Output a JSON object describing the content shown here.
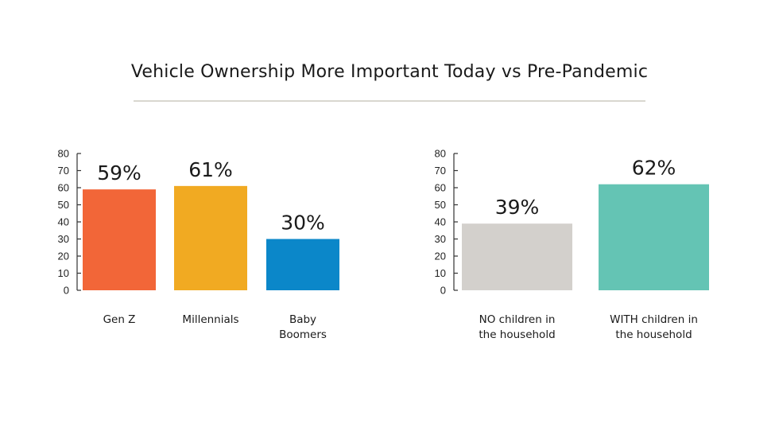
{
  "title": "Vehicle Ownership More Important Today vs Pre-Pandemic",
  "chart_data": [
    {
      "type": "bar",
      "categories": [
        "Gen Z",
        "Millennials",
        "Baby Boomers"
      ],
      "category_lines": [
        [
          "Gen Z"
        ],
        [
          "Millennials"
        ],
        [
          "Baby",
          "Boomers"
        ]
      ],
      "values": [
        59,
        61,
        30
      ],
      "data_labels": [
        "59%",
        "61%",
        "30%"
      ],
      "colors": [
        "#f26638",
        "#f1aa22",
        "#0b87c9"
      ],
      "ylim": [
        0,
        80
      ],
      "yticks": [
        0,
        10,
        20,
        30,
        40,
        50,
        60,
        70,
        80
      ],
      "grid": false,
      "title": "",
      "xlabel": "",
      "ylabel": ""
    },
    {
      "type": "bar",
      "categories": [
        "NO children in the household",
        "WITH children in the household"
      ],
      "category_lines": [
        [
          "NO children in",
          "the household"
        ],
        [
          "WITH children in",
          "the household"
        ]
      ],
      "values": [
        39,
        62
      ],
      "data_labels": [
        "39%",
        "62%"
      ],
      "colors": [
        "#d3d0cc",
        "#64c4b4"
      ],
      "ylim": [
        0,
        80
      ],
      "yticks": [
        0,
        10,
        20,
        30,
        40,
        50,
        60,
        70,
        80
      ],
      "grid": false,
      "title": "",
      "xlabel": "",
      "ylabel": ""
    }
  ]
}
